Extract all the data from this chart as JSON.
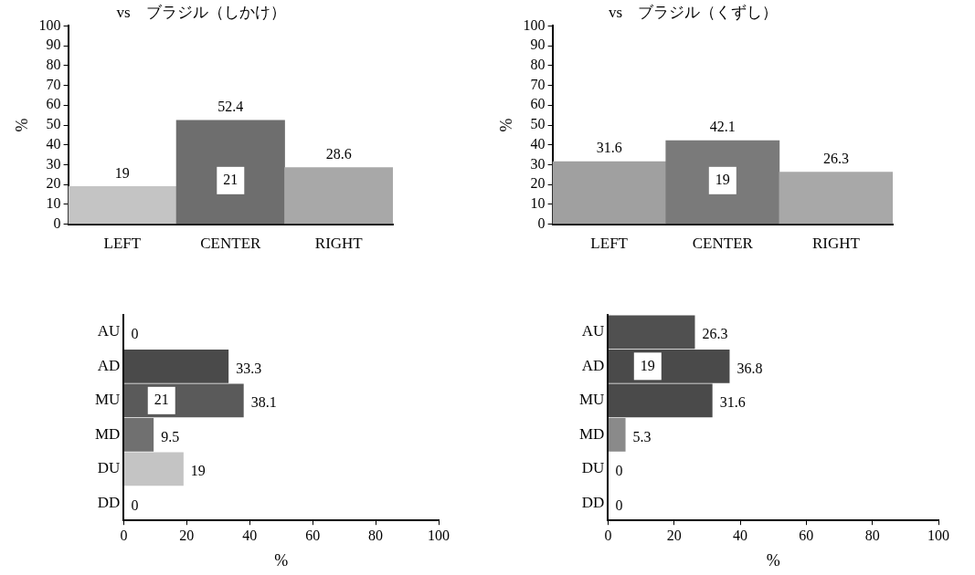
{
  "chart_data": [
    {
      "type": "bar",
      "title": "vs　ブラジル（しかけ）",
      "ylabel": "%",
      "categories": [
        "LEFT",
        "CENTER",
        "RIGHT"
      ],
      "values": [
        19,
        52.4,
        28.6
      ],
      "colors": [
        "#c4c4c4",
        "#6e6e6e",
        "#a8a8a8"
      ],
      "ylim": [
        0,
        100
      ],
      "yticks": [
        0,
        10,
        20,
        30,
        40,
        50,
        60,
        70,
        80,
        90,
        100
      ],
      "grid": false,
      "data_labels": true,
      "annotations": [
        "21"
      ]
    },
    {
      "type": "bar",
      "title": "vs　ブラジル（くずし）",
      "ylabel": "%",
      "categories": [
        "LEFT",
        "CENTER",
        "RIGHT"
      ],
      "values": [
        31.6,
        42.1,
        26.3
      ],
      "colors": [
        "#a0a0a0",
        "#7a7a7a",
        "#a8a8a8"
      ],
      "ylim": [
        0,
        100
      ],
      "yticks": [
        0,
        10,
        20,
        30,
        40,
        50,
        60,
        70,
        80,
        90,
        100
      ],
      "grid": false,
      "data_labels": true,
      "annotations": [
        "19"
      ]
    },
    {
      "type": "bar",
      "orientation": "horizontal",
      "xlabel": "%",
      "categories": [
        "AU",
        "AD",
        "MU",
        "MD",
        "DU",
        "DD"
      ],
      "values": [
        0,
        33.3,
        38.1,
        9.5,
        19,
        0
      ],
      "colors": [
        "#505050",
        "#4a4a4a",
        "#5a5a5a",
        "#707070",
        "#c4c4c4",
        "#c4c4c4"
      ],
      "xlim": [
        0,
        100
      ],
      "xticks": [
        0,
        20,
        40,
        60,
        80,
        100
      ],
      "grid": false,
      "data_labels": true,
      "annotations": [
        "21"
      ]
    },
    {
      "type": "bar",
      "orientation": "horizontal",
      "xlabel": "%",
      "categories": [
        "AU",
        "AD",
        "MU",
        "MD",
        "DU",
        "DD"
      ],
      "values": [
        26.3,
        36.8,
        31.6,
        5.3,
        0,
        0
      ],
      "colors": [
        "#505050",
        "#4a4a4a",
        "#4a4a4a",
        "#8a8a8a",
        "#c4c4c4",
        "#c4c4c4"
      ],
      "xlim": [
        0,
        100
      ],
      "xticks": [
        0,
        20,
        40,
        60,
        80,
        100
      ],
      "grid": false,
      "data_labels": true,
      "annotations": [
        "19"
      ]
    }
  ]
}
